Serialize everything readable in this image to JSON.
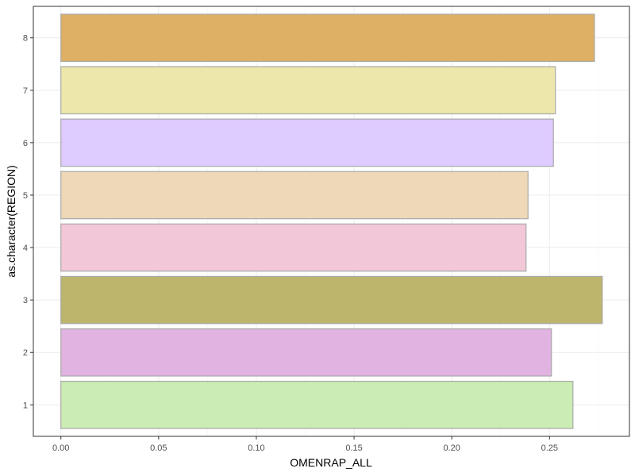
{
  "chart_data": {
    "type": "bar",
    "orientation": "horizontal",
    "title": "",
    "xlabel": "OMENRAP_ALL",
    "ylabel": "as.character(REGION)",
    "categories": [
      "1",
      "2",
      "3",
      "4",
      "5",
      "6",
      "7",
      "8"
    ],
    "values": [
      0.262,
      0.251,
      0.277,
      0.238,
      0.239,
      0.252,
      0.253,
      0.273
    ],
    "colors": [
      "#CBECB3",
      "#E0B3E0",
      "#BDB56C",
      "#F2C7D7",
      "#EED8B7",
      "#DECBFF",
      "#EDE7AB",
      "#DEB065"
    ],
    "xlim": [
      -0.0141,
      0.2909
    ],
    "x_ticks": [
      0.0,
      0.05,
      0.1,
      0.15,
      0.2,
      0.25
    ],
    "x_tick_labels": [
      "0.00",
      "0.05",
      "0.10",
      "0.15",
      "0.20",
      "0.25"
    ],
    "grid": true,
    "theme": "bw",
    "bar_outline_color": "#A9A9A9"
  }
}
